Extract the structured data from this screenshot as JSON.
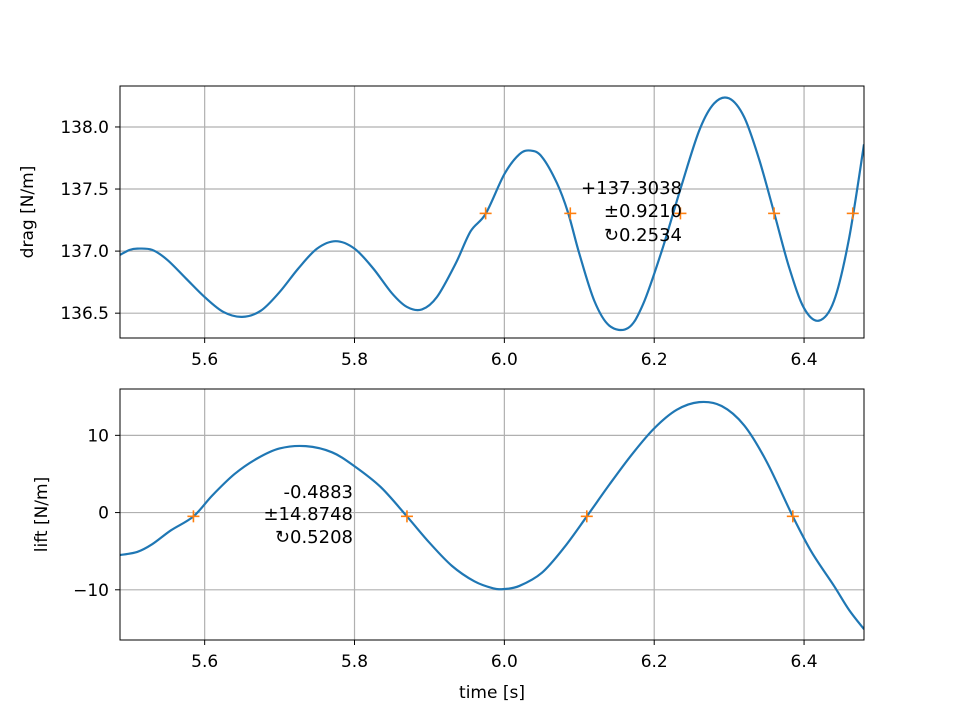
{
  "chart_data": [
    {
      "type": "line",
      "xlabel": "",
      "ylabel": "drag [N/m]",
      "xlim": [
        5.487,
        6.48
      ],
      "ylim": [
        136.3,
        138.33
      ],
      "xticks": [
        "5.6",
        "5.8",
        "6.0",
        "6.2",
        "6.4"
      ],
      "yticks": [
        "136.5",
        "137.0",
        "137.5",
        "138.0"
      ],
      "grid": true,
      "line_color": "#1f77b4",
      "marker_color": "#ff7f0e",
      "series": [
        {
          "x": [
            5.487,
            5.5,
            5.51,
            5.53,
            5.55,
            5.575,
            5.6,
            5.625,
            5.65,
            5.675,
            5.7,
            5.725,
            5.75,
            5.775,
            5.8,
            5.825,
            5.85,
            5.87,
            5.89,
            5.91,
            5.935,
            5.955,
            5.975,
            6.0,
            6.02,
            6.035,
            6.05,
            6.07,
            6.085,
            6.1,
            6.12,
            6.14,
            6.165,
            6.185,
            6.21,
            6.235,
            6.26,
            6.28,
            6.3,
            6.32,
            6.34,
            6.36,
            6.38,
            6.4,
            6.42,
            6.44,
            6.46,
            6.48
          ],
          "y": [
            136.97,
            137.01,
            137.02,
            137.01,
            136.93,
            136.78,
            136.63,
            136.51,
            136.47,
            136.52,
            136.67,
            136.86,
            137.02,
            137.08,
            137.02,
            136.86,
            136.66,
            136.55,
            136.53,
            136.63,
            136.9,
            137.16,
            137.3,
            137.62,
            137.78,
            137.81,
            137.76,
            137.55,
            137.31,
            136.98,
            136.6,
            136.4,
            136.38,
            136.57,
            137.0,
            137.5,
            137.97,
            138.19,
            138.23,
            138.08,
            137.74,
            137.31,
            136.87,
            136.54,
            136.44,
            136.6,
            137.1,
            137.86
          ]
        }
      ],
      "markers": {
        "x": [
          5.975,
          6.088,
          6.235,
          6.36,
          6.465
        ],
        "y": [
          137.3038,
          137.3038,
          137.3038,
          137.3038,
          137.3038
        ]
      },
      "annotation": [
        "+137.3038",
        "±0.9210",
        "↻0.2534"
      ]
    },
    {
      "type": "line",
      "xlabel": "time [s]",
      "ylabel": "lift [N/m]",
      "xlim": [
        5.487,
        6.48
      ],
      "ylim": [
        -16.5,
        16.0
      ],
      "xticks": [
        "5.6",
        "5.8",
        "6.0",
        "6.2",
        "6.4"
      ],
      "yticks": [
        "−10",
        "0",
        "10"
      ],
      "grid": true,
      "line_color": "#1f77b4",
      "marker_color": "#ff7f0e",
      "series": [
        {
          "x": [
            5.487,
            5.51,
            5.53,
            5.555,
            5.585,
            5.61,
            5.64,
            5.67,
            5.7,
            5.735,
            5.77,
            5.8,
            5.835,
            5.87,
            5.9,
            5.93,
            5.96,
            5.985,
            6.0,
            6.02,
            6.05,
            6.08,
            6.11,
            6.14,
            6.17,
            6.2,
            6.23,
            6.26,
            6.29,
            6.32,
            6.35,
            6.385,
            6.41,
            6.44,
            6.46,
            6.48
          ],
          "y": [
            -5.5,
            -5.1,
            -4.1,
            -2.3,
            -0.5,
            2.2,
            5.0,
            7.0,
            8.3,
            8.6,
            7.8,
            6.0,
            3.3,
            -0.5,
            -3.9,
            -6.9,
            -8.9,
            -9.8,
            -9.9,
            -9.5,
            -7.8,
            -4.5,
            -0.5,
            3.6,
            7.5,
            10.9,
            13.3,
            14.3,
            13.8,
            11.3,
            6.6,
            -0.5,
            -5.1,
            -9.5,
            -12.6,
            -15.1
          ]
        }
      ],
      "markers": {
        "x": [
          5.585,
          5.87,
          6.11,
          6.385
        ],
        "y": [
          -0.4883,
          -0.4883,
          -0.4883,
          -0.4883
        ]
      },
      "annotation": [
        "-0.4883",
        "±14.8748",
        "↻0.5208"
      ]
    }
  ]
}
